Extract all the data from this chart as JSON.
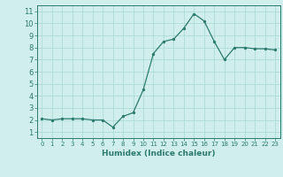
{
  "x": [
    0,
    1,
    2,
    3,
    4,
    5,
    6,
    7,
    8,
    9,
    10,
    11,
    12,
    13,
    14,
    15,
    16,
    17,
    18,
    19,
    20,
    21,
    22,
    23
  ],
  "y": [
    2.1,
    2.0,
    2.1,
    2.1,
    2.1,
    2.0,
    2.0,
    1.4,
    2.3,
    2.6,
    4.5,
    7.5,
    8.5,
    8.7,
    9.6,
    10.8,
    10.2,
    8.5,
    7.0,
    8.0,
    8.0,
    7.9,
    7.9,
    7.8
  ],
  "xlabel": "Humidex (Indice chaleur)",
  "xlim": [
    -0.5,
    23.5
  ],
  "ylim": [
    0.5,
    11.5
  ],
  "yticks": [
    1,
    2,
    3,
    4,
    5,
    6,
    7,
    8,
    9,
    10,
    11
  ],
  "xticks": [
    0,
    1,
    2,
    3,
    4,
    5,
    6,
    7,
    8,
    9,
    10,
    11,
    12,
    13,
    14,
    15,
    16,
    17,
    18,
    19,
    20,
    21,
    22,
    23
  ],
  "line_color": "#2d7a6e",
  "marker_color": "#2d7a6e",
  "bg_color": "#d0eeeb",
  "grid_color": "#a8d8d3",
  "tick_color": "#2d7a6e",
  "spine_color": "#2d7a6e",
  "label_color": "#2d7a6e"
}
